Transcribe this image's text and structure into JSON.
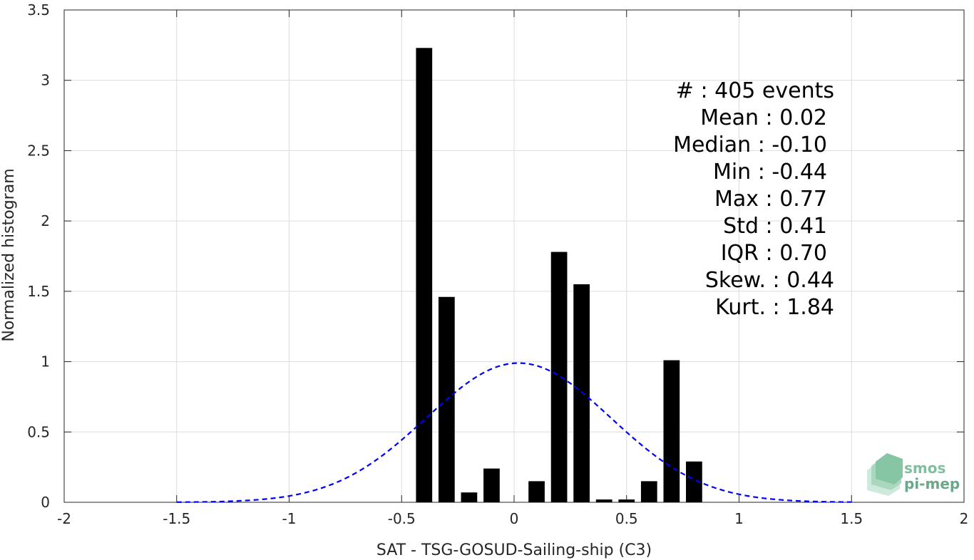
{
  "chart_data": {
    "type": "bar",
    "xlabel": "SAT - TSG-GOSUD-Sailing-ship (C3)",
    "ylabel": "Normalized histogram",
    "xlim": [
      -2,
      2
    ],
    "ylim": [
      0,
      3.5
    ],
    "xticks": [
      "-2",
      "-1.5",
      "-1",
      "-0.5",
      "0",
      "0.5",
      "1",
      "1.5",
      "2"
    ],
    "yticks": [
      "0",
      "0.5",
      "1",
      "1.5",
      "2",
      "2.5",
      "3",
      "3.5"
    ],
    "grid": true,
    "bin_width": 0.1,
    "bins": [
      {
        "x": -0.4,
        "y": 3.23
      },
      {
        "x": -0.3,
        "y": 1.46
      },
      {
        "x": -0.2,
        "y": 0.07
      },
      {
        "x": -0.1,
        "y": 0.24
      },
      {
        "x": 0.1,
        "y": 0.15
      },
      {
        "x": 0.2,
        "y": 1.78
      },
      {
        "x": 0.3,
        "y": 1.55
      },
      {
        "x": 0.4,
        "y": 0.02
      },
      {
        "x": 0.5,
        "y": 0.02
      },
      {
        "x": 0.6,
        "y": 0.15
      },
      {
        "x": 0.7,
        "y": 1.01
      },
      {
        "x": 0.8,
        "y": 0.29
      }
    ],
    "bar_color": "#000000",
    "fit_curve": {
      "style": "dashed",
      "color": "#0000ff",
      "mean": 0.02,
      "std": 0.41,
      "peak": 0.99,
      "x_range": [
        -1.5,
        1.5
      ]
    },
    "annotation": [
      {
        "label": "#",
        "value": ": 405 events"
      },
      {
        "label": "Mean",
        "value": ": 0.02"
      },
      {
        "label": "Median",
        "value": ": -0.10"
      },
      {
        "label": "Min",
        "value": ": -0.44"
      },
      {
        "label": "Max",
        "value": ": 0.77"
      },
      {
        "label": "Std",
        "value": ": 0.41"
      },
      {
        "label": "IQR",
        "value": ": 0.70"
      },
      {
        "label": "Skew.",
        "value": ": 0.44"
      },
      {
        "label": "Kurt.",
        "value": ": 1.84"
      }
    ]
  },
  "logo": {
    "line1": "smos",
    "line2": "pi-mep",
    "color": "#7fbf9f"
  }
}
